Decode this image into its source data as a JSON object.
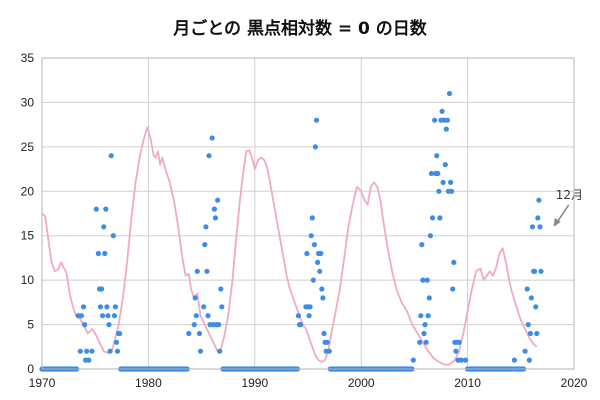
{
  "chart_data": {
    "type": "scatter",
    "title": "月ごとの 黒点相対数 = 0 の日数",
    "xlabel": "",
    "ylabel": "",
    "xlim": [
      1970,
      2020
    ],
    "ylim": [
      0,
      35
    ],
    "xticks": [
      "1970",
      "1980",
      "1990",
      "2000",
      "2010",
      "2020"
    ],
    "yticks": [
      "0",
      "5",
      "10",
      "15",
      "20",
      "25",
      "30",
      "35"
    ],
    "grid": true,
    "legend": "none",
    "annotation": {
      "text": "12月",
      "x": 2018.0,
      "y": 16
    },
    "colors": {
      "points": "#3d8de8",
      "curve": "#f2a9c9",
      "arrow": "#8a8a8a"
    },
    "series": [
      {
        "type": "scatter",
        "points": [
          [
            1973.4,
            6
          ],
          [
            1973.6,
            2
          ],
          [
            1973.7,
            6
          ],
          [
            1973.9,
            7
          ],
          [
            1974.0,
            5
          ],
          [
            1974.1,
            1
          ],
          [
            1974.2,
            2
          ],
          [
            1974.4,
            1
          ],
          [
            1974.7,
            2
          ],
          [
            1975.1,
            18
          ],
          [
            1975.3,
            13
          ],
          [
            1975.4,
            9
          ],
          [
            1975.5,
            7
          ],
          [
            1975.6,
            9
          ],
          [
            1975.7,
            6
          ],
          [
            1975.8,
            16
          ],
          [
            1975.9,
            13
          ],
          [
            1976.0,
            18
          ],
          [
            1976.1,
            7
          ],
          [
            1976.2,
            6
          ],
          [
            1976.3,
            5
          ],
          [
            1976.4,
            2
          ],
          [
            1976.5,
            24
          ],
          [
            1976.7,
            15
          ],
          [
            1976.8,
            6
          ],
          [
            1976.9,
            7
          ],
          [
            1977.0,
            3
          ],
          [
            1977.1,
            2
          ],
          [
            1977.2,
            4
          ],
          [
            1977.3,
            4
          ],
          [
            1983.8,
            4
          ],
          [
            1984.3,
            5
          ],
          [
            1984.4,
            8
          ],
          [
            1984.5,
            6
          ],
          [
            1984.6,
            11
          ],
          [
            1984.8,
            4
          ],
          [
            1984.9,
            2
          ],
          [
            1985.2,
            7
          ],
          [
            1985.3,
            14
          ],
          [
            1985.4,
            16
          ],
          [
            1985.5,
            11
          ],
          [
            1985.6,
            6
          ],
          [
            1985.7,
            24
          ],
          [
            1985.8,
            5
          ],
          [
            1986.0,
            26
          ],
          [
            1986.1,
            5
          ],
          [
            1986.2,
            18
          ],
          [
            1986.3,
            17
          ],
          [
            1986.4,
            5
          ],
          [
            1986.5,
            19
          ],
          [
            1986.6,
            5
          ],
          [
            1986.7,
            2
          ],
          [
            1986.8,
            9
          ],
          [
            1986.9,
            7
          ],
          [
            1994.1,
            6
          ],
          [
            1994.2,
            5
          ],
          [
            1994.3,
            5
          ],
          [
            1994.8,
            7
          ],
          [
            1994.9,
            13
          ],
          [
            1995.0,
            7
          ],
          [
            1995.1,
            6
          ],
          [
            1995.2,
            7
          ],
          [
            1995.3,
            15
          ],
          [
            1995.4,
            17
          ],
          [
            1995.5,
            10
          ],
          [
            1995.6,
            14
          ],
          [
            1995.7,
            25
          ],
          [
            1995.8,
            28
          ],
          [
            1995.9,
            12
          ],
          [
            1996.0,
            13
          ],
          [
            1996.1,
            11
          ],
          [
            1996.2,
            13
          ],
          [
            1996.3,
            9
          ],
          [
            1996.4,
            8
          ],
          [
            1996.5,
            4
          ],
          [
            1996.6,
            3
          ],
          [
            1996.7,
            2
          ],
          [
            1996.8,
            3
          ],
          [
            1997.0,
            2
          ],
          [
            2004.9,
            1
          ],
          [
            2005.5,
            3
          ],
          [
            2005.6,
            6
          ],
          [
            2005.7,
            14
          ],
          [
            2005.8,
            10
          ],
          [
            2005.9,
            4
          ],
          [
            2006.0,
            5
          ],
          [
            2006.1,
            3
          ],
          [
            2006.2,
            10
          ],
          [
            2006.3,
            6
          ],
          [
            2006.4,
            8
          ],
          [
            2006.5,
            15
          ],
          [
            2006.6,
            22
          ],
          [
            2006.7,
            17
          ],
          [
            2006.9,
            28
          ],
          [
            2007.0,
            22
          ],
          [
            2007.1,
            24
          ],
          [
            2007.2,
            22
          ],
          [
            2007.3,
            20
          ],
          [
            2007.4,
            17
          ],
          [
            2007.5,
            28
          ],
          [
            2007.6,
            29
          ],
          [
            2007.7,
            21
          ],
          [
            2007.8,
            28
          ],
          [
            2007.9,
            23
          ],
          [
            2008.0,
            27
          ],
          [
            2008.1,
            28
          ],
          [
            2008.2,
            20
          ],
          [
            2008.3,
            31
          ],
          [
            2008.4,
            21
          ],
          [
            2008.5,
            20
          ],
          [
            2008.6,
            9
          ],
          [
            2008.7,
            12
          ],
          [
            2008.8,
            3
          ],
          [
            2008.9,
            2
          ],
          [
            2009.0,
            3
          ],
          [
            2009.1,
            1
          ],
          [
            2009.2,
            3
          ],
          [
            2009.4,
            1
          ],
          [
            2009.8,
            1
          ],
          [
            2014.4,
            1
          ],
          [
            2015.4,
            2
          ],
          [
            2015.6,
            9
          ],
          [
            2015.7,
            5
          ],
          [
            2015.8,
            1
          ],
          [
            2015.9,
            4
          ],
          [
            2016.0,
            8
          ],
          [
            2016.1,
            16
          ],
          [
            2016.2,
            11
          ],
          [
            2016.3,
            11
          ],
          [
            2016.4,
            7
          ],
          [
            2016.5,
            4
          ],
          [
            2016.6,
            17
          ],
          [
            2016.7,
            19
          ],
          [
            2016.8,
            16
          ],
          [
            2016.9,
            11
          ]
        ]
      },
      {
        "type": "line",
        "points": [
          [
            1970.0,
            17.5
          ],
          [
            1970.3,
            17.2
          ],
          [
            1970.6,
            14.5
          ],
          [
            1970.9,
            12.0
          ],
          [
            1971.2,
            11.0
          ],
          [
            1971.5,
            11.2
          ],
          [
            1971.8,
            12.0
          ],
          [
            1972.0,
            11.5
          ],
          [
            1972.3,
            10.8
          ],
          [
            1972.6,
            8.5
          ],
          [
            1972.9,
            7.0
          ],
          [
            1973.2,
            6.0
          ],
          [
            1973.5,
            5.8
          ],
          [
            1973.9,
            5.0
          ],
          [
            1974.3,
            4.0
          ],
          [
            1974.7,
            4.5
          ],
          [
            1975.0,
            4.0
          ],
          [
            1975.4,
            3.0
          ],
          [
            1975.8,
            2.0
          ],
          [
            1976.2,
            1.8
          ],
          [
            1976.6,
            2.2
          ],
          [
            1976.9,
            3.5
          ],
          [
            1977.2,
            5.0
          ],
          [
            1977.6,
            8.0
          ],
          [
            1978.0,
            12.0
          ],
          [
            1978.4,
            17.0
          ],
          [
            1978.8,
            21.0
          ],
          [
            1979.2,
            24.0
          ],
          [
            1979.6,
            26.0
          ],
          [
            1979.9,
            27.2
          ],
          [
            1980.2,
            26.0
          ],
          [
            1980.5,
            24.0
          ],
          [
            1980.7,
            23.8
          ],
          [
            1980.9,
            24.5
          ],
          [
            1981.1,
            23.0
          ],
          [
            1981.3,
            23.8
          ],
          [
            1981.6,
            22.5
          ],
          [
            1982.0,
            21.0
          ],
          [
            1982.4,
            19.0
          ],
          [
            1982.8,
            16.0
          ],
          [
            1983.2,
            12.5
          ],
          [
            1983.5,
            10.5
          ],
          [
            1983.8,
            10.7
          ],
          [
            1984.0,
            9.0
          ],
          [
            1984.3,
            8.0
          ],
          [
            1984.6,
            8.5
          ],
          [
            1984.9,
            6.0
          ],
          [
            1985.3,
            5.0
          ],
          [
            1985.7,
            4.0
          ],
          [
            1986.1,
            3.0
          ],
          [
            1986.5,
            2.0
          ],
          [
            1986.8,
            2.2
          ],
          [
            1987.1,
            3.5
          ],
          [
            1987.5,
            6.0
          ],
          [
            1987.9,
            10.0
          ],
          [
            1988.2,
            14.0
          ],
          [
            1988.6,
            19.0
          ],
          [
            1988.9,
            22.0
          ],
          [
            1989.2,
            24.5
          ],
          [
            1989.5,
            24.6
          ],
          [
            1989.8,
            23.5
          ],
          [
            1990.0,
            22.5
          ],
          [
            1990.3,
            23.5
          ],
          [
            1990.6,
            23.8
          ],
          [
            1990.9,
            23.5
          ],
          [
            1991.2,
            22.5
          ],
          [
            1991.5,
            20.5
          ],
          [
            1991.8,
            18.5
          ],
          [
            1992.1,
            16.5
          ],
          [
            1992.4,
            14.5
          ],
          [
            1992.7,
            12.5
          ],
          [
            1993.0,
            10.5
          ],
          [
            1993.3,
            9.0
          ],
          [
            1993.6,
            8.0
          ],
          [
            1993.9,
            7.0
          ],
          [
            1994.2,
            6.0
          ],
          [
            1994.5,
            5.0
          ],
          [
            1994.8,
            4.5
          ],
          [
            1995.1,
            3.5
          ],
          [
            1995.4,
            2.5
          ],
          [
            1995.7,
            1.5
          ],
          [
            1996.0,
            1.0
          ],
          [
            1996.3,
            0.8
          ],
          [
            1996.6,
            1.0
          ],
          [
            1996.9,
            2.0
          ],
          [
            1997.2,
            4.0
          ],
          [
            1997.6,
            6.5
          ],
          [
            1998.0,
            9.0
          ],
          [
            1998.4,
            12.5
          ],
          [
            1998.8,
            16.0
          ],
          [
            1999.2,
            18.5
          ],
          [
            1999.6,
            20.5
          ],
          [
            2000.0,
            20.0
          ],
          [
            2000.3,
            19.0
          ],
          [
            2000.6,
            18.5
          ],
          [
            2000.9,
            20.5
          ],
          [
            2001.2,
            21.0
          ],
          [
            2001.5,
            20.5
          ],
          [
            2001.8,
            19.0
          ],
          [
            2002.1,
            16.5
          ],
          [
            2002.5,
            13.5
          ],
          [
            2002.9,
            11.0
          ],
          [
            2003.3,
            9.0
          ],
          [
            2003.8,
            7.5
          ],
          [
            2004.3,
            6.5
          ],
          [
            2004.8,
            5.0
          ],
          [
            2005.3,
            4.0
          ],
          [
            2005.8,
            3.0
          ],
          [
            2006.3,
            2.0
          ],
          [
            2006.8,
            1.2
          ],
          [
            2007.3,
            0.8
          ],
          [
            2007.8,
            0.5
          ],
          [
            2008.3,
            0.5
          ],
          [
            2008.8,
            1.0
          ],
          [
            2009.2,
            2.0
          ],
          [
            2009.6,
            4.0
          ],
          [
            2010.0,
            6.5
          ],
          [
            2010.4,
            9.0
          ],
          [
            2010.8,
            11.0
          ],
          [
            2011.2,
            11.3
          ],
          [
            2011.5,
            10.0
          ],
          [
            2011.8,
            10.5
          ],
          [
            2012.1,
            11.0
          ],
          [
            2012.4,
            10.5
          ],
          [
            2012.7,
            11.5
          ],
          [
            2013.0,
            13.0
          ],
          [
            2013.3,
            13.6
          ],
          [
            2013.6,
            12.0
          ],
          [
            2013.9,
            10.0
          ],
          [
            2014.2,
            8.5
          ],
          [
            2014.6,
            7.0
          ],
          [
            2015.0,
            5.5
          ],
          [
            2015.4,
            4.5
          ],
          [
            2015.8,
            3.5
          ],
          [
            2016.2,
            2.8
          ],
          [
            2016.5,
            2.5
          ]
        ]
      }
    ]
  }
}
